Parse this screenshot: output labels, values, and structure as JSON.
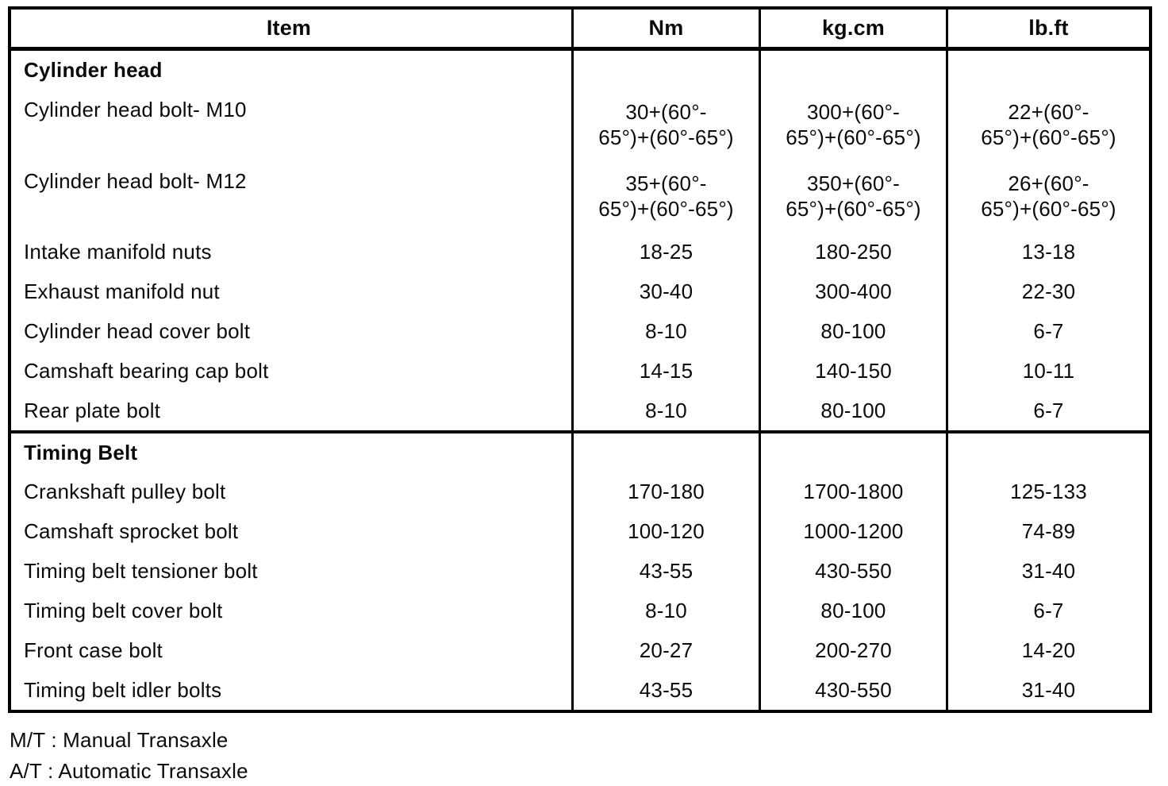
{
  "table": {
    "headers": [
      "Item",
      "Nm",
      "kg.cm",
      "lb.ft"
    ],
    "sections": [
      {
        "title": "Cylinder head",
        "rows": [
          {
            "item": "Cylinder head bolt- M10",
            "nm": "30+(60°-\n65°)+(60°-65°)",
            "kgcm": "300+(60°-\n65°)+(60°-65°)",
            "lbft": "22+(60°-\n65°)+(60°-65°)"
          },
          {
            "item": "Cylinder head bolt- M12",
            "nm": "35+(60°-\n65°)+(60°-65°)",
            "kgcm": "350+(60°-\n65°)+(60°-65°)",
            "lbft": "26+(60°-\n65°)+(60°-65°)"
          },
          {
            "item": "Intake manifold nuts",
            "nm": "18-25",
            "kgcm": "180-250",
            "lbft": "13-18"
          },
          {
            "item": "Exhaust manifold nut",
            "nm": "30-40",
            "kgcm": "300-400",
            "lbft": "22-30"
          },
          {
            "item": "Cylinder head cover bolt",
            "nm": "8-10",
            "kgcm": "80-100",
            "lbft": "6-7"
          },
          {
            "item": "Camshaft bearing cap bolt",
            "nm": "14-15",
            "kgcm": "140-150",
            "lbft": "10-11"
          },
          {
            "item": "Rear plate bolt",
            "nm": "8-10",
            "kgcm": "80-100",
            "lbft": "6-7"
          }
        ]
      },
      {
        "title": "Timing Belt",
        "rows": [
          {
            "item": "Crankshaft pulley bolt",
            "nm": "170-180",
            "kgcm": "1700-1800",
            "lbft": "125-133"
          },
          {
            "item": "Camshaft sprocket bolt",
            "nm": "100-120",
            "kgcm": "1000-1200",
            "lbft": "74-89"
          },
          {
            "item": "Timing belt tensioner bolt",
            "nm": "43-55",
            "kgcm": "430-550",
            "lbft": "31-40"
          },
          {
            "item": "Timing belt cover bolt",
            "nm": "8-10",
            "kgcm": "80-100",
            "lbft": "6-7"
          },
          {
            "item": "Front case bolt",
            "nm": "20-27",
            "kgcm": "200-270",
            "lbft": "14-20"
          },
          {
            "item": "Timing belt idler bolts",
            "nm": "43-55",
            "kgcm": "430-550",
            "lbft": "31-40"
          }
        ]
      }
    ]
  },
  "footnotes": {
    "mt": "M/T : Manual Transaxle",
    "at": "A/T : Automatic Transaxle"
  },
  "colors": {
    "ink": "#0a0a0a",
    "paper": "#ffffff"
  }
}
